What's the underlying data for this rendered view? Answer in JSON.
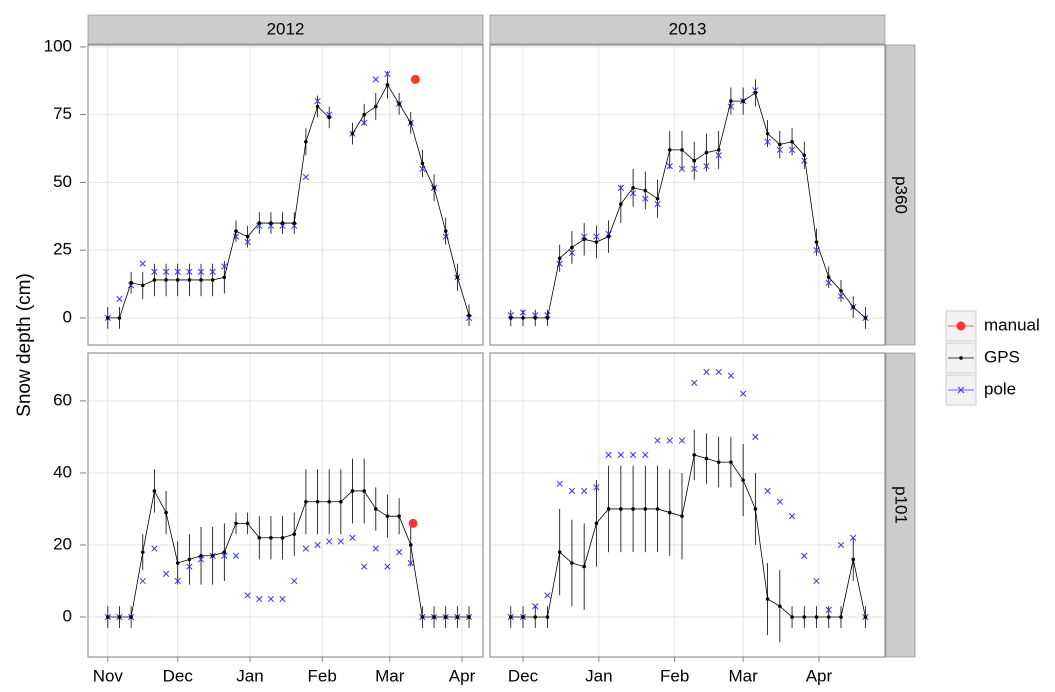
{
  "chart_data": {
    "type": "scatter",
    "ylabel": "Snow depth (cm)",
    "grid": true,
    "legend": [
      {
        "name": "manual",
        "color": "#ff3333"
      },
      {
        "name": "GPS",
        "color": "#000000"
      },
      {
        "name": "pole",
        "color": "#3333ff"
      }
    ],
    "columns": [
      {
        "label": "2012",
        "xlim": [
          -8.5,
          161
        ],
        "xticks": [
          {
            "value": 0,
            "label": "Nov"
          },
          {
            "value": 30,
            "label": "Dec"
          },
          {
            "value": 61,
            "label": "Jan"
          },
          {
            "value": 92,
            "label": "Feb"
          },
          {
            "value": 121,
            "label": "Mar"
          },
          {
            "value": 152,
            "label": "Apr"
          }
        ]
      },
      {
        "label": "2013",
        "xlim": [
          16.5,
          178
        ],
        "xticks": [
          {
            "value": 30,
            "label": "Dec"
          },
          {
            "value": 61,
            "label": "Jan"
          },
          {
            "value": 92,
            "label": "Feb"
          },
          {
            "value": 120,
            "label": "Mar"
          },
          {
            "value": 151,
            "label": "Apr"
          }
        ]
      }
    ],
    "rows": [
      {
        "label": "p360",
        "ylim": [
          -10,
          100.7
        ],
        "yticks": [
          0,
          25,
          50,
          75,
          100
        ],
        "cells": [
          {
            "x": [
              0,
              5,
              10,
              15,
              20,
              25,
              30,
              35,
              40,
              45,
              50,
              55,
              60,
              65,
              70,
              75,
              80,
              85,
              90,
              95,
              100,
              105,
              110,
              115,
              120,
              125,
              130,
              135,
              140,
              145,
              150,
              155
            ],
            "gps": [
              0,
              0,
              13,
              12,
              14,
              14,
              14,
              14,
              14,
              14,
              15,
              32,
              30,
              35,
              35,
              35,
              35,
              65,
              78,
              74,
              null,
              68,
              75,
              78,
              86,
              79,
              72,
              57,
              48,
              32,
              15,
              1
            ],
            "gps_err": [
              4,
              4,
              4,
              5,
              6,
              6,
              6,
              6,
              6,
              6,
              6,
              4,
              4,
              4,
              4,
              4,
              4,
              5,
              4,
              4,
              null,
              4,
              4,
              5,
              5,
              4,
              4,
              5,
              5,
              5,
              5,
              4
            ],
            "pole": [
              0,
              7,
              12,
              20,
              17,
              17,
              17,
              17,
              17,
              17,
              19,
              30,
              28,
              34,
              34,
              34,
              34,
              52,
              80,
              75,
              null,
              68,
              72,
              88,
              90,
              79,
              72,
              55,
              48,
              30,
              15,
              0
            ],
            "manual_x": [
              132
            ],
            "manual": [
              88
            ]
          },
          {
            "x": [
              25,
              30,
              35,
              40,
              45,
              50,
              55,
              60,
              65,
              70,
              75,
              80,
              85,
              90,
              95,
              100,
              105,
              110,
              115,
              120,
              125,
              130,
              135,
              140,
              145,
              150,
              155,
              160,
              165,
              170
            ],
            "gps": [
              0,
              0,
              0,
              0,
              22,
              26,
              29,
              28,
              30,
              42,
              48,
              47,
              44,
              62,
              62,
              58,
              61,
              62,
              80,
              80,
              83,
              68,
              64,
              65,
              60,
              28,
              15,
              10,
              4,
              0
            ],
            "gps_err": [
              3,
              3,
              3,
              3,
              5,
              6,
              6,
              6,
              6,
              7,
              7,
              7,
              7,
              7,
              7,
              7,
              7,
              7,
              5,
              5,
              5,
              5,
              5,
              5,
              5,
              5,
              4,
              4,
              4,
              4
            ],
            "pole": [
              1,
              2,
              1,
              1,
              20,
              24,
              30,
              30,
              31,
              48,
              46,
              44,
              42,
              56,
              55,
              55,
              56,
              60,
              78,
              80,
              84,
              65,
              62,
              62,
              58,
              25,
              13,
              8,
              4,
              0
            ],
            "manual_x": [],
            "manual": []
          }
        ]
      },
      {
        "label": "p101",
        "ylim": [
          -11.1,
          73.3
        ],
        "yticks": [
          0,
          20,
          40,
          60
        ],
        "cells": [
          {
            "x": [
              0,
              5,
              10,
              15,
              20,
              25,
              30,
              35,
              40,
              45,
              50,
              55,
              60,
              65,
              70,
              75,
              80,
              85,
              90,
              95,
              100,
              105,
              110,
              115,
              120,
              125,
              130,
              135,
              140,
              145,
              150,
              155
            ],
            "gps": [
              0,
              0,
              0,
              18,
              35,
              29,
              15,
              16,
              17,
              17,
              18,
              26,
              26,
              22,
              22,
              22,
              23,
              32,
              32,
              32,
              32,
              35,
              35,
              30,
              28,
              28,
              20,
              0,
              0,
              0,
              0,
              0
            ],
            "gps_err": [
              3,
              3,
              3,
              5,
              6,
              6,
              6,
              7,
              8,
              8,
              8,
              3,
              3,
              6,
              6,
              6,
              6,
              9,
              9,
              9,
              9,
              9,
              9,
              6,
              6,
              5,
              6,
              3,
              3,
              3,
              3,
              3
            ],
            "pole": [
              0,
              0,
              0,
              10,
              19,
              12,
              10,
              14,
              16,
              17,
              17,
              17,
              6,
              5,
              5,
              5,
              10,
              19,
              20,
              21,
              21,
              22,
              14,
              19,
              14,
              18,
              15,
              0,
              0,
              0,
              0,
              0
            ],
            "manual_x": [
              131
            ],
            "manual": [
              26
            ]
          },
          {
            "x": [
              25,
              30,
              35,
              40,
              45,
              50,
              55,
              60,
              65,
              70,
              75,
              80,
              85,
              90,
              95,
              100,
              105,
              110,
              115,
              120,
              125,
              130,
              135,
              140,
              145,
              150,
              155,
              160,
              165,
              170
            ],
            "gps": [
              0,
              0,
              0,
              0,
              18,
              15,
              14,
              26,
              30,
              30,
              30,
              30,
              30,
              29,
              28,
              45,
              44,
              43,
              43,
              38,
              30,
              5,
              3,
              0,
              0,
              0,
              0,
              0,
              16,
              0
            ],
            "gps_err": [
              3,
              3,
              3,
              3,
              12,
              12,
              12,
              12,
              12,
              12,
              12,
              12,
              12,
              12,
              12,
              7,
              7,
              7,
              7,
              10,
              10,
              10,
              10,
              3,
              3,
              3,
              3,
              3,
              6,
              3
            ],
            "pole": [
              0,
              0,
              3,
              6,
              37,
              35,
              35,
              36,
              45,
              45,
              45,
              45,
              49,
              49,
              49,
              65,
              68,
              68,
              67,
              62,
              50,
              35,
              32,
              28,
              17,
              10,
              2,
              20,
              22,
              0
            ],
            "manual_x": [],
            "manual": []
          }
        ]
      }
    ]
  }
}
